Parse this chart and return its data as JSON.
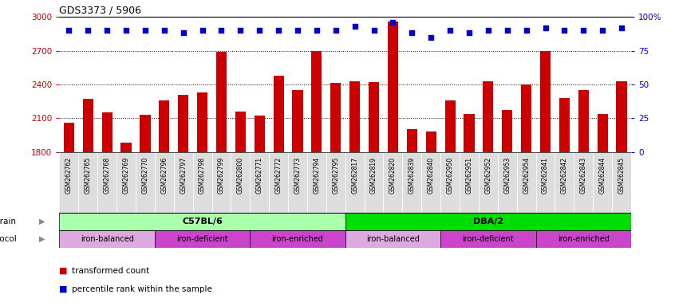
{
  "title": "GDS3373 / 5906",
  "samples": [
    "GSM262762",
    "GSM262765",
    "GSM262768",
    "GSM262769",
    "GSM262770",
    "GSM262796",
    "GSM262797",
    "GSM262798",
    "GSM262799",
    "GSM262800",
    "GSM262771",
    "GSM262772",
    "GSM262773",
    "GSM262794",
    "GSM262795",
    "GSM262817",
    "GSM262819",
    "GSM262820",
    "GSM262839",
    "GSM262840",
    "GSM262950",
    "GSM262951",
    "GSM262952",
    "GSM262953",
    "GSM262954",
    "GSM262841",
    "GSM262842",
    "GSM262843",
    "GSM262844",
    "GSM262845"
  ],
  "transformed_count": [
    2060,
    2270,
    2150,
    1880,
    2130,
    2260,
    2310,
    2330,
    2690,
    2160,
    2120,
    2480,
    2350,
    2700,
    2410,
    2430,
    2420,
    2960,
    2000,
    1980,
    2260,
    2140,
    2430,
    2170,
    2400,
    2700,
    2280,
    2350,
    2140,
    2430
  ],
  "percentile_rank": [
    90,
    90,
    90,
    90,
    90,
    90,
    88,
    90,
    90,
    90,
    90,
    90,
    90,
    90,
    90,
    93,
    90,
    96,
    88,
    85,
    90,
    88,
    90,
    90,
    90,
    92,
    90,
    90,
    90,
    92
  ],
  "ylim_left": [
    1800,
    3000
  ],
  "ylim_right": [
    0,
    100
  ],
  "yticks_left": [
    1800,
    2100,
    2400,
    2700,
    3000
  ],
  "yticks_right": [
    0,
    25,
    50,
    75,
    100
  ],
  "bar_color": "#cc0000",
  "dot_color": "#0000cc",
  "strain_groups": [
    {
      "label": "C57BL/6",
      "start": 0,
      "end": 15,
      "color": "#aaffaa"
    },
    {
      "label": "DBA/2",
      "start": 15,
      "end": 30,
      "color": "#00dd00"
    }
  ],
  "protocol_groups": [
    {
      "label": "iron-balanced",
      "start": 0,
      "end": 5,
      "color": "#ddaadd"
    },
    {
      "label": "iron-deficient",
      "start": 5,
      "end": 10,
      "color": "#cc44cc"
    },
    {
      "label": "iron-enriched",
      "start": 10,
      "end": 15,
      "color": "#cc44cc"
    },
    {
      "label": "iron-balanced",
      "start": 15,
      "end": 20,
      "color": "#ddaadd"
    },
    {
      "label": "iron-deficient",
      "start": 20,
      "end": 25,
      "color": "#cc44cc"
    },
    {
      "label": "iron-enriched",
      "start": 25,
      "end": 30,
      "color": "#cc44cc"
    }
  ],
  "legend_items": [
    {
      "label": "transformed count",
      "color": "#cc0000"
    },
    {
      "label": "percentile rank within the sample",
      "color": "#0000cc"
    }
  ],
  "background_color": "#ffffff",
  "gridline_color": "#000000",
  "left_axis_color": "#cc0000",
  "right_axis_color": "#0000cc",
  "tick_label_bg": "#dddddd"
}
